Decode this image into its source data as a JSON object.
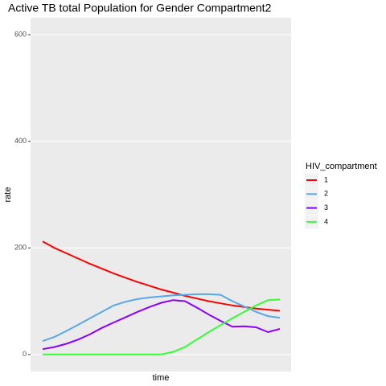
{
  "chart_data": {
    "type": "line",
    "title": "Active TB total Population for Gender Compartment2",
    "x_label": "time",
    "y_label": "rate",
    "legend_title": "HIV_compartment",
    "ylim": [
      -32,
      632
    ],
    "yticks": [
      0,
      200,
      400,
      600
    ],
    "grid": true,
    "legend": "right",
    "series": [
      {
        "name": "1",
        "color": "#ff0000",
        "values": [
          212,
          200,
          190,
          180,
          170,
          161,
          152,
          144,
          136,
          129,
          122,
          116,
          110,
          105,
          100,
          96,
          92,
          89,
          86,
          84,
          82
        ]
      },
      {
        "name": "2",
        "color": "#56a8e8",
        "values": [
          25,
          33,
          44,
          56,
          68,
          80,
          92,
          99,
          104,
          107,
          109,
          111,
          112,
          113,
          113,
          112,
          100,
          90,
          80,
          72,
          69
        ]
      },
      {
        "name": "3",
        "color": "#8b00ff",
        "values": [
          10,
          14,
          20,
          28,
          38,
          50,
          60,
          70,
          80,
          89,
          97,
          102,
          100,
          88,
          75,
          63,
          52,
          53,
          51,
          42,
          48
        ]
      },
      {
        "name": "4",
        "color": "#33ff33",
        "values": [
          0,
          0,
          0,
          0,
          0,
          0,
          0,
          0,
          0,
          0,
          0,
          5,
          14,
          28,
          42,
          55,
          68,
          80,
          92,
          102,
          103
        ]
      }
    ]
  }
}
